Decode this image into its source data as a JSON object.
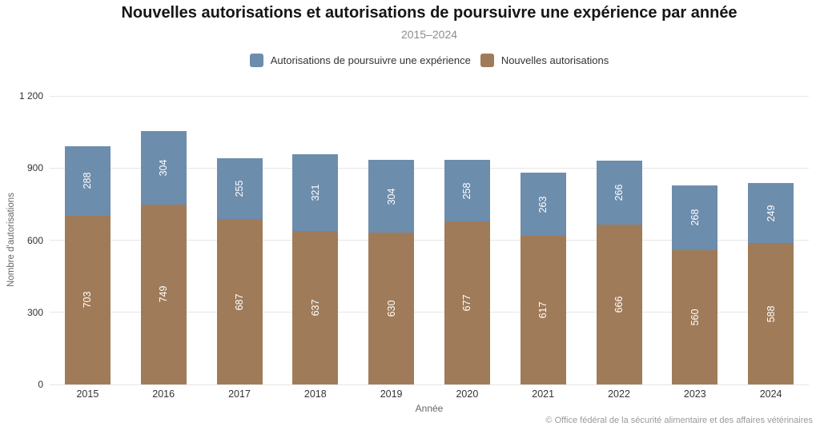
{
  "header": {
    "title": "Nouvelles autorisations et autorisations de poursuivre une expérience par année",
    "subtitle": "2015–2024"
  },
  "legend": [
    {
      "label": "Autorisations de poursuivre une expérience",
      "color": "#6d8dad"
    },
    {
      "label": "Nouvelles autorisations",
      "color": "#a07b59"
    }
  ],
  "chart_data": {
    "type": "bar",
    "stacked": true,
    "title": "Nouvelles autorisations et autorisations de poursuivre une expérience par année",
    "subtitle": "2015–2024",
    "categories": [
      "2015",
      "2016",
      "2017",
      "2018",
      "2019",
      "2020",
      "2021",
      "2022",
      "2023",
      "2024"
    ],
    "series": [
      {
        "name": "Nouvelles autorisations",
        "key": "nouvelles-autorisations",
        "color": "#a07b59",
        "values": [
          703,
          749,
          687,
          637,
          630,
          677,
          617,
          666,
          560,
          588
        ]
      },
      {
        "name": "Autorisations de poursuivre une expérience",
        "key": "autorisations-poursuivre",
        "color": "#6d8dad",
        "values": [
          288,
          304,
          255,
          321,
          304,
          258,
          263,
          266,
          268,
          249
        ]
      }
    ],
    "xlabel": "Année",
    "ylabel": "Nombre d'autorisations",
    "ylim": [
      0,
      1200
    ],
    "yticks": [
      {
        "value": 0,
        "label": "0"
      },
      {
        "value": 300,
        "label": "300"
      },
      {
        "value": 600,
        "label": "600"
      },
      {
        "value": 900,
        "label": "900"
      },
      {
        "value": 1200,
        "label": "1 200"
      }
    ],
    "grid": true,
    "legend_position": "top",
    "datalabels": {
      "color": "#ffffff",
      "rotation": -90
    }
  },
  "footer": {
    "credit": "© Office fédéral de la sécurité alimentaire et des affaires vétérinaires"
  }
}
